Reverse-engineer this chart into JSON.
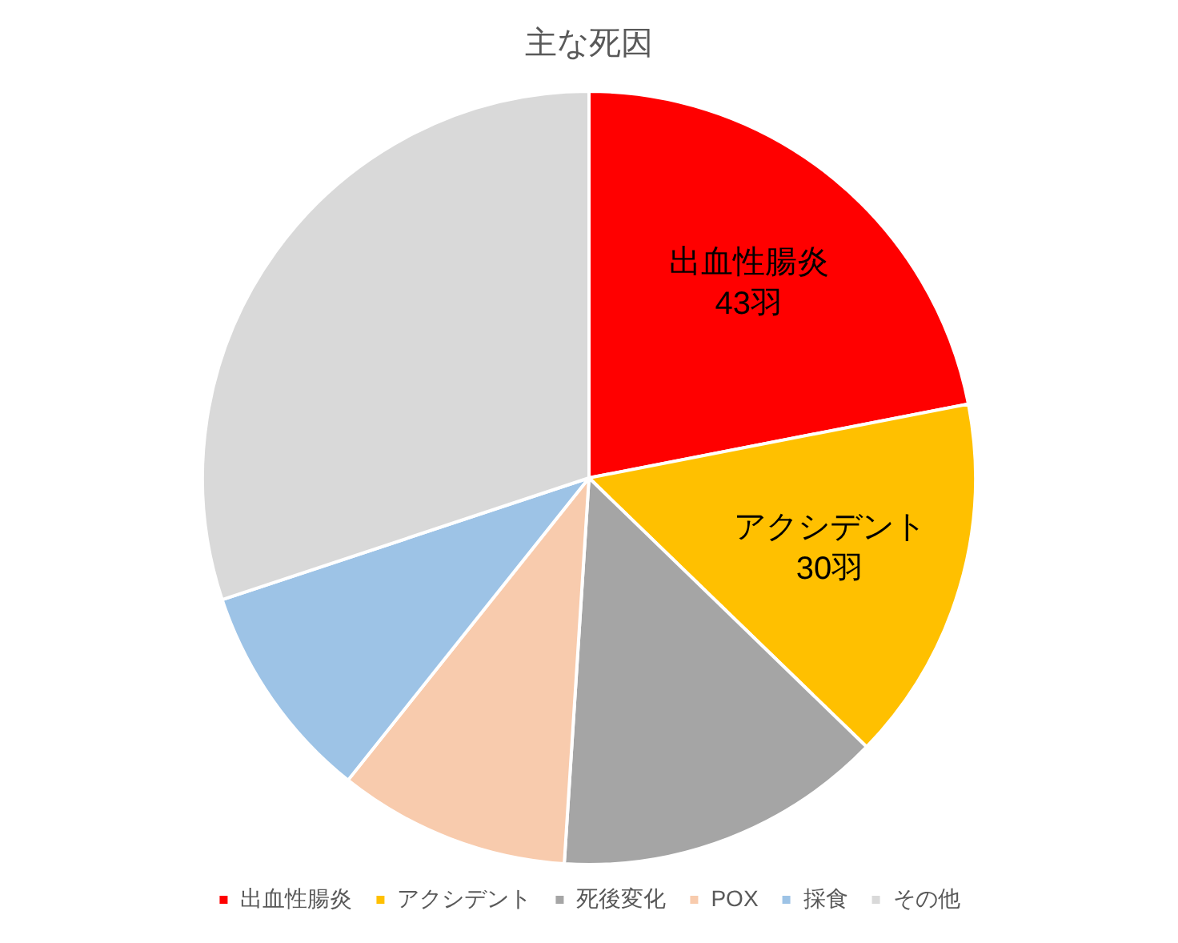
{
  "chart_data": {
    "type": "pie",
    "title": "主な死因",
    "categories": [
      "出血性腸炎",
      "アクシデント",
      "死後変化",
      "POX",
      "採食",
      "その他"
    ],
    "values": [
      43,
      30,
      27,
      19,
      18,
      59
    ],
    "colors": [
      "#ff0000",
      "#ffc000",
      "#a5a5a5",
      "#f8cbad",
      "#9dc3e6",
      "#d9d9d9"
    ],
    "value_labels": [
      "43羽",
      "30羽",
      null,
      null,
      null,
      null
    ],
    "legend": "bottom"
  }
}
